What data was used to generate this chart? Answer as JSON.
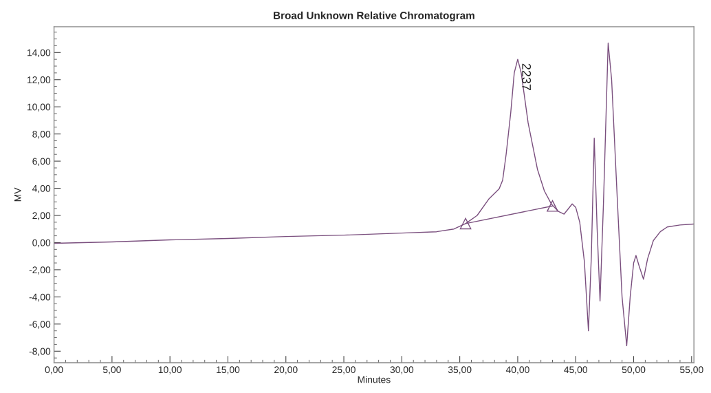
{
  "chart_data": {
    "type": "line",
    "title": "Broad Unknown Relative Chromatogram",
    "xlabel": "Minutes",
    "ylabel": "MV",
    "series": [
      {
        "color": "#7a4f7e",
        "x": [
          0,
          5,
          10,
          15,
          20,
          25,
          30,
          33,
          34.5,
          35.5,
          36.5,
          37.5,
          38.4,
          38.7,
          39.0,
          39.4,
          39.7,
          40.0,
          40.3,
          40.9,
          41.7,
          42.3,
          42.9,
          43.5,
          44.0,
          44.7,
          45.0,
          45.35,
          45.75,
          46.1,
          46.35,
          46.6,
          46.85,
          47.1,
          47.4,
          47.8,
          48.1,
          48.6,
          49.0,
          49.4,
          49.7,
          50.0,
          50.2,
          50.5,
          50.85,
          51.2,
          51.7,
          52.3,
          52.9,
          54.0,
          55.2
        ],
        "values": [
          -0.05,
          0.05,
          0.2,
          0.3,
          0.45,
          0.55,
          0.7,
          0.8,
          1.0,
          1.4,
          2.0,
          3.2,
          3.96,
          4.6,
          6.5,
          9.6,
          12.5,
          13.5,
          12.5,
          8.8,
          5.4,
          3.8,
          2.84,
          2.3,
          2.1,
          2.85,
          2.6,
          1.5,
          -1.4,
          -6.5,
          -1.0,
          7.7,
          1.0,
          -4.3,
          3.0,
          14.7,
          12.0,
          3.0,
          -4.0,
          -7.6,
          -4.0,
          -1.5,
          -0.95,
          -1.8,
          -2.7,
          -1.2,
          0.15,
          0.8,
          1.15,
          1.3,
          1.37
        ],
        "marker": "none"
      },
      {
        "color": "#7a4f7e",
        "x": [
          35.5,
          43.0
        ],
        "values": [
          1.4,
          2.7
        ],
        "marker": "triangle"
      }
    ],
    "annotations": [
      {
        "text": "2237",
        "x": 40.0,
        "y": 13.5
      }
    ],
    "xlim": [
      0,
      55.2
    ],
    "ylim": [
      -8.85,
      15.9
    ],
    "xticks": [
      {
        "value": 0,
        "label": "0,00"
      },
      {
        "value": 5,
        "label": "5,00"
      },
      {
        "value": 10,
        "label": "10,00"
      },
      {
        "value": 15,
        "label": "15,00"
      },
      {
        "value": 20,
        "label": "20,00"
      },
      {
        "value": 25,
        "label": "25,00"
      },
      {
        "value": 30,
        "label": "30,00"
      },
      {
        "value": 35,
        "label": "35,00"
      },
      {
        "value": 40,
        "label": "40,00"
      },
      {
        "value": 45,
        "label": "45,00"
      },
      {
        "value": 50,
        "label": "50,00"
      },
      {
        "value": 55,
        "label": "55,00"
      }
    ],
    "yticks": [
      {
        "value": -8,
        "label": "-8,00"
      },
      {
        "value": -6,
        "label": "-6,00"
      },
      {
        "value": -4,
        "label": "-4,00"
      },
      {
        "value": -2,
        "label": "-2,00"
      },
      {
        "value": 0,
        "label": "0,00"
      },
      {
        "value": 2,
        "label": "2,00"
      },
      {
        "value": 4,
        "label": "4,00"
      },
      {
        "value": 6,
        "label": "6,00"
      },
      {
        "value": 8,
        "label": "8,00"
      },
      {
        "value": 10,
        "label": "10,00"
      },
      {
        "value": 12,
        "label": "12,00"
      },
      {
        "value": 14,
        "label": "14,00"
      }
    ],
    "grid": false,
    "legend": false
  }
}
